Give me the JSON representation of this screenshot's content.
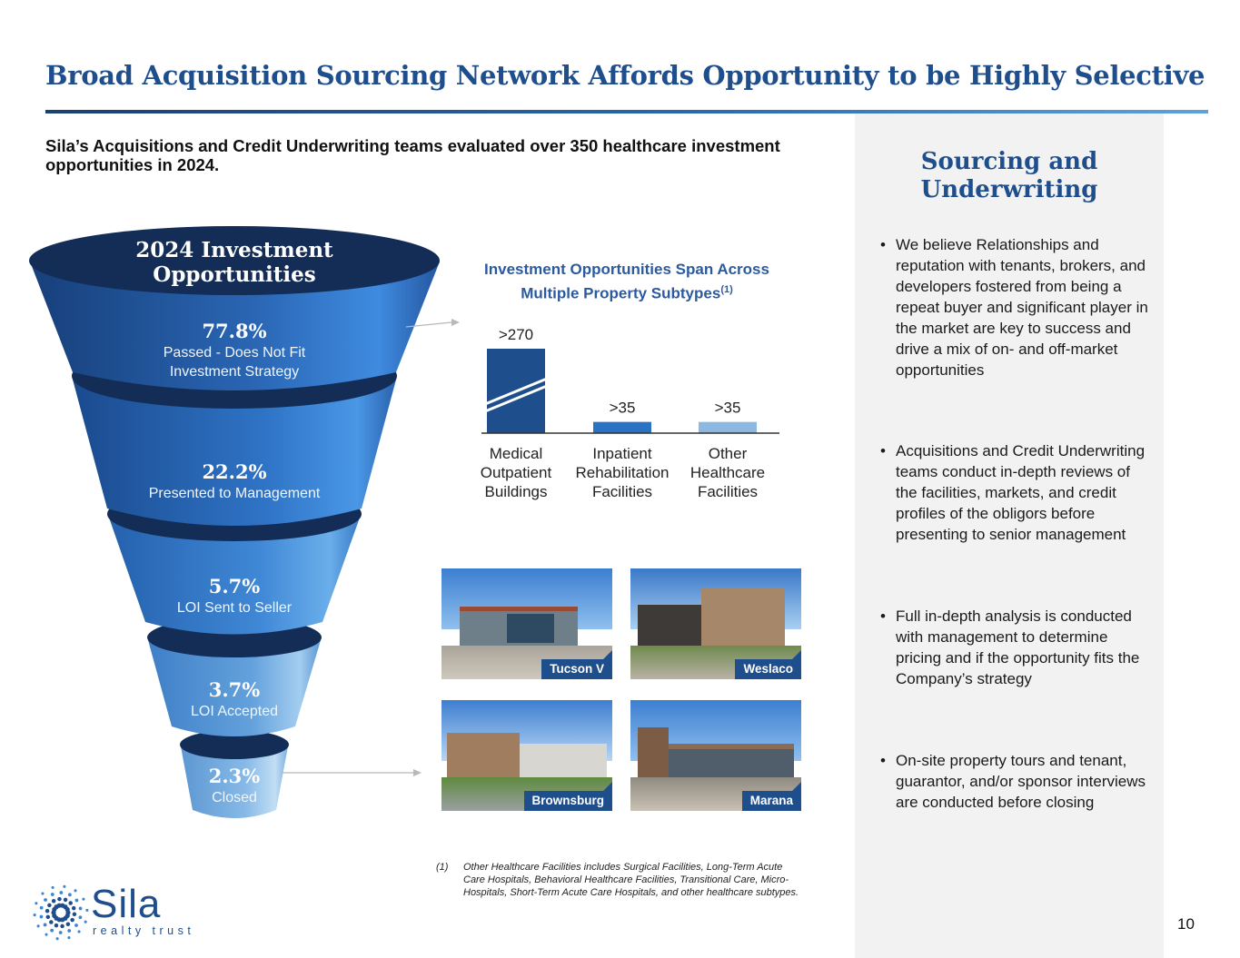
{
  "header": {
    "title": "Broad Acquisition Sourcing Network Affords Opportunity to be Highly Selective",
    "subtitle": "Sila’s Acquisitions and Credit Underwriting teams evaluated over 350 healthcare investment opportunities in 2024."
  },
  "funnel": {
    "heading": "2024 Investment Opportunities",
    "stages": [
      {
        "percent": "77.8%",
        "label": "Passed - Does Not Fit Investment Strategy",
        "value": 77.8
      },
      {
        "percent": "22.2%",
        "label": "Presented to Management",
        "value": 22.2
      },
      {
        "percent": "5.7%",
        "label": "LOI Sent to Seller",
        "value": 5.7
      },
      {
        "percent": "3.7%",
        "label": "LOI Accepted",
        "value": 3.7
      },
      {
        "percent": "2.3%",
        "label": "Closed",
        "value": 2.3
      }
    ]
  },
  "chart_data": {
    "type": "bar",
    "title": "Investment Opportunities Span Across Multiple Property Subtypes",
    "title_footnote": "(1)",
    "categories": [
      "Medical Outpatient Buildings",
      "Inpatient Rehabilitation Facilities",
      "Other Healthcare Facilities"
    ],
    "values": [
      270,
      35,
      35
    ],
    "data_labels": [
      ">270",
      ">35",
      ">35"
    ],
    "axis_break_on": "Medical Outpatient Buildings",
    "colors": [
      "#1f4e8c",
      "#2a72c4",
      "#8cb8e2"
    ],
    "xlabel": "",
    "ylabel": "",
    "grid": false
  },
  "photos": [
    {
      "label": "Tucson V"
    },
    {
      "label": "Weslaco"
    },
    {
      "label": "Brownsburg"
    },
    {
      "label": "Marana"
    }
  ],
  "sidebar": {
    "title": "Sourcing and Underwriting",
    "bullets": [
      "We believe Relationships and reputation with tenants, brokers, and developers fostered from being a repeat buyer and significant player in the market are key to success and drive a mix of on- and off-market opportunities",
      "Acquisitions and Credit Underwriting teams conduct in-depth reviews of the facilities, markets, and credit profiles of the obligors before presenting to senior management",
      "Full in-depth analysis is conducted with management to determine pricing and if the opportunity fits the Company’s strategy",
      "On-site property tours and tenant, guarantor, and/or sponsor interviews are conducted before closing"
    ],
    "bullet_glyph": "•"
  },
  "footnote": {
    "mark": "(1)",
    "text": "Other Healthcare Facilities includes Surgical Facilities, Long-Term Acute Care Hospitals, Behavioral Healthcare Facilities, Transitional Care, Micro-Hospitals, Short-Term Acute Care Hospitals, and other healthcare subtypes."
  },
  "logo": {
    "word": "Sila",
    "sub": "realty trust"
  },
  "page_number": "10",
  "colors": {
    "brand": "#1f4e8c",
    "sidebar_bg": "#f2f2f2"
  }
}
